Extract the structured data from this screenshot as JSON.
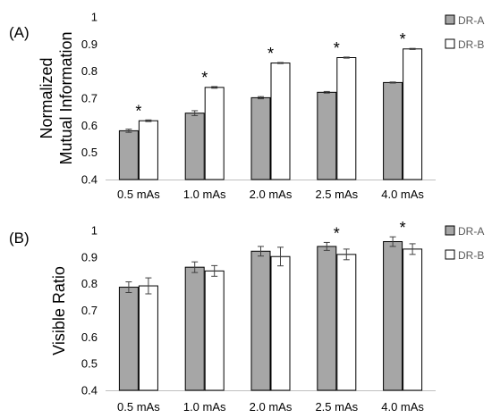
{
  "colors": {
    "dr_a": "#a6a6a6",
    "dr_b": "#ffffff",
    "outline": "#000000",
    "error_bar": "#404040",
    "axis_text": "#000000"
  },
  "chart_data": [
    {
      "panel_label": "(A)",
      "type": "bar",
      "ylabel_lines": [
        "Normalized",
        "Mutual Information"
      ],
      "categories": [
        "0.5 mAs",
        "1.0 mAs",
        "2.0 mAs",
        "2.5 mAs",
        "4.0 mAs"
      ],
      "ylim": [
        0.4,
        1.0
      ],
      "yticks": [
        "0.4",
        "0.5",
        "0.6",
        "0.7",
        "0.8",
        "0.9",
        "1"
      ],
      "grid": false,
      "legend_position": "right",
      "significance": [
        "*",
        "*",
        "*",
        "*",
        "*"
      ],
      "series": [
        {
          "name": "DR-A",
          "values": [
            0.58,
            0.645,
            0.702,
            0.722,
            0.758
          ],
          "errors": [
            0.006,
            0.009,
            0.004,
            0.003,
            0.002
          ]
        },
        {
          "name": "DR-B",
          "values": [
            0.617,
            0.74,
            0.83,
            0.85,
            0.882
          ],
          "errors": [
            0.003,
            0.003,
            0.002,
            0.002,
            0.002
          ]
        }
      ]
    },
    {
      "panel_label": "(B)",
      "type": "bar",
      "ylabel_lines": [
        "Visible Ratio"
      ],
      "categories": [
        "0.5 mAs",
        "1.0 mAs",
        "2.0 mAs",
        "2.5 mAs",
        "4.0 mAs"
      ],
      "ylim": [
        0.4,
        1.0
      ],
      "yticks": [
        "0.4",
        "0.5",
        "0.6",
        "0.7",
        "0.8",
        "0.9",
        "1"
      ],
      "grid": false,
      "legend_position": "right",
      "significance": [
        "",
        "",
        "",
        "*",
        "*"
      ],
      "series": [
        {
          "name": "DR-A",
          "values": [
            0.787,
            0.862,
            0.922,
            0.94,
            0.958
          ],
          "errors": [
            0.02,
            0.02,
            0.018,
            0.015,
            0.018
          ]
        },
        {
          "name": "DR-B",
          "values": [
            0.792,
            0.848,
            0.902,
            0.91,
            0.93
          ],
          "errors": [
            0.03,
            0.02,
            0.035,
            0.02,
            0.02
          ]
        }
      ]
    }
  ]
}
